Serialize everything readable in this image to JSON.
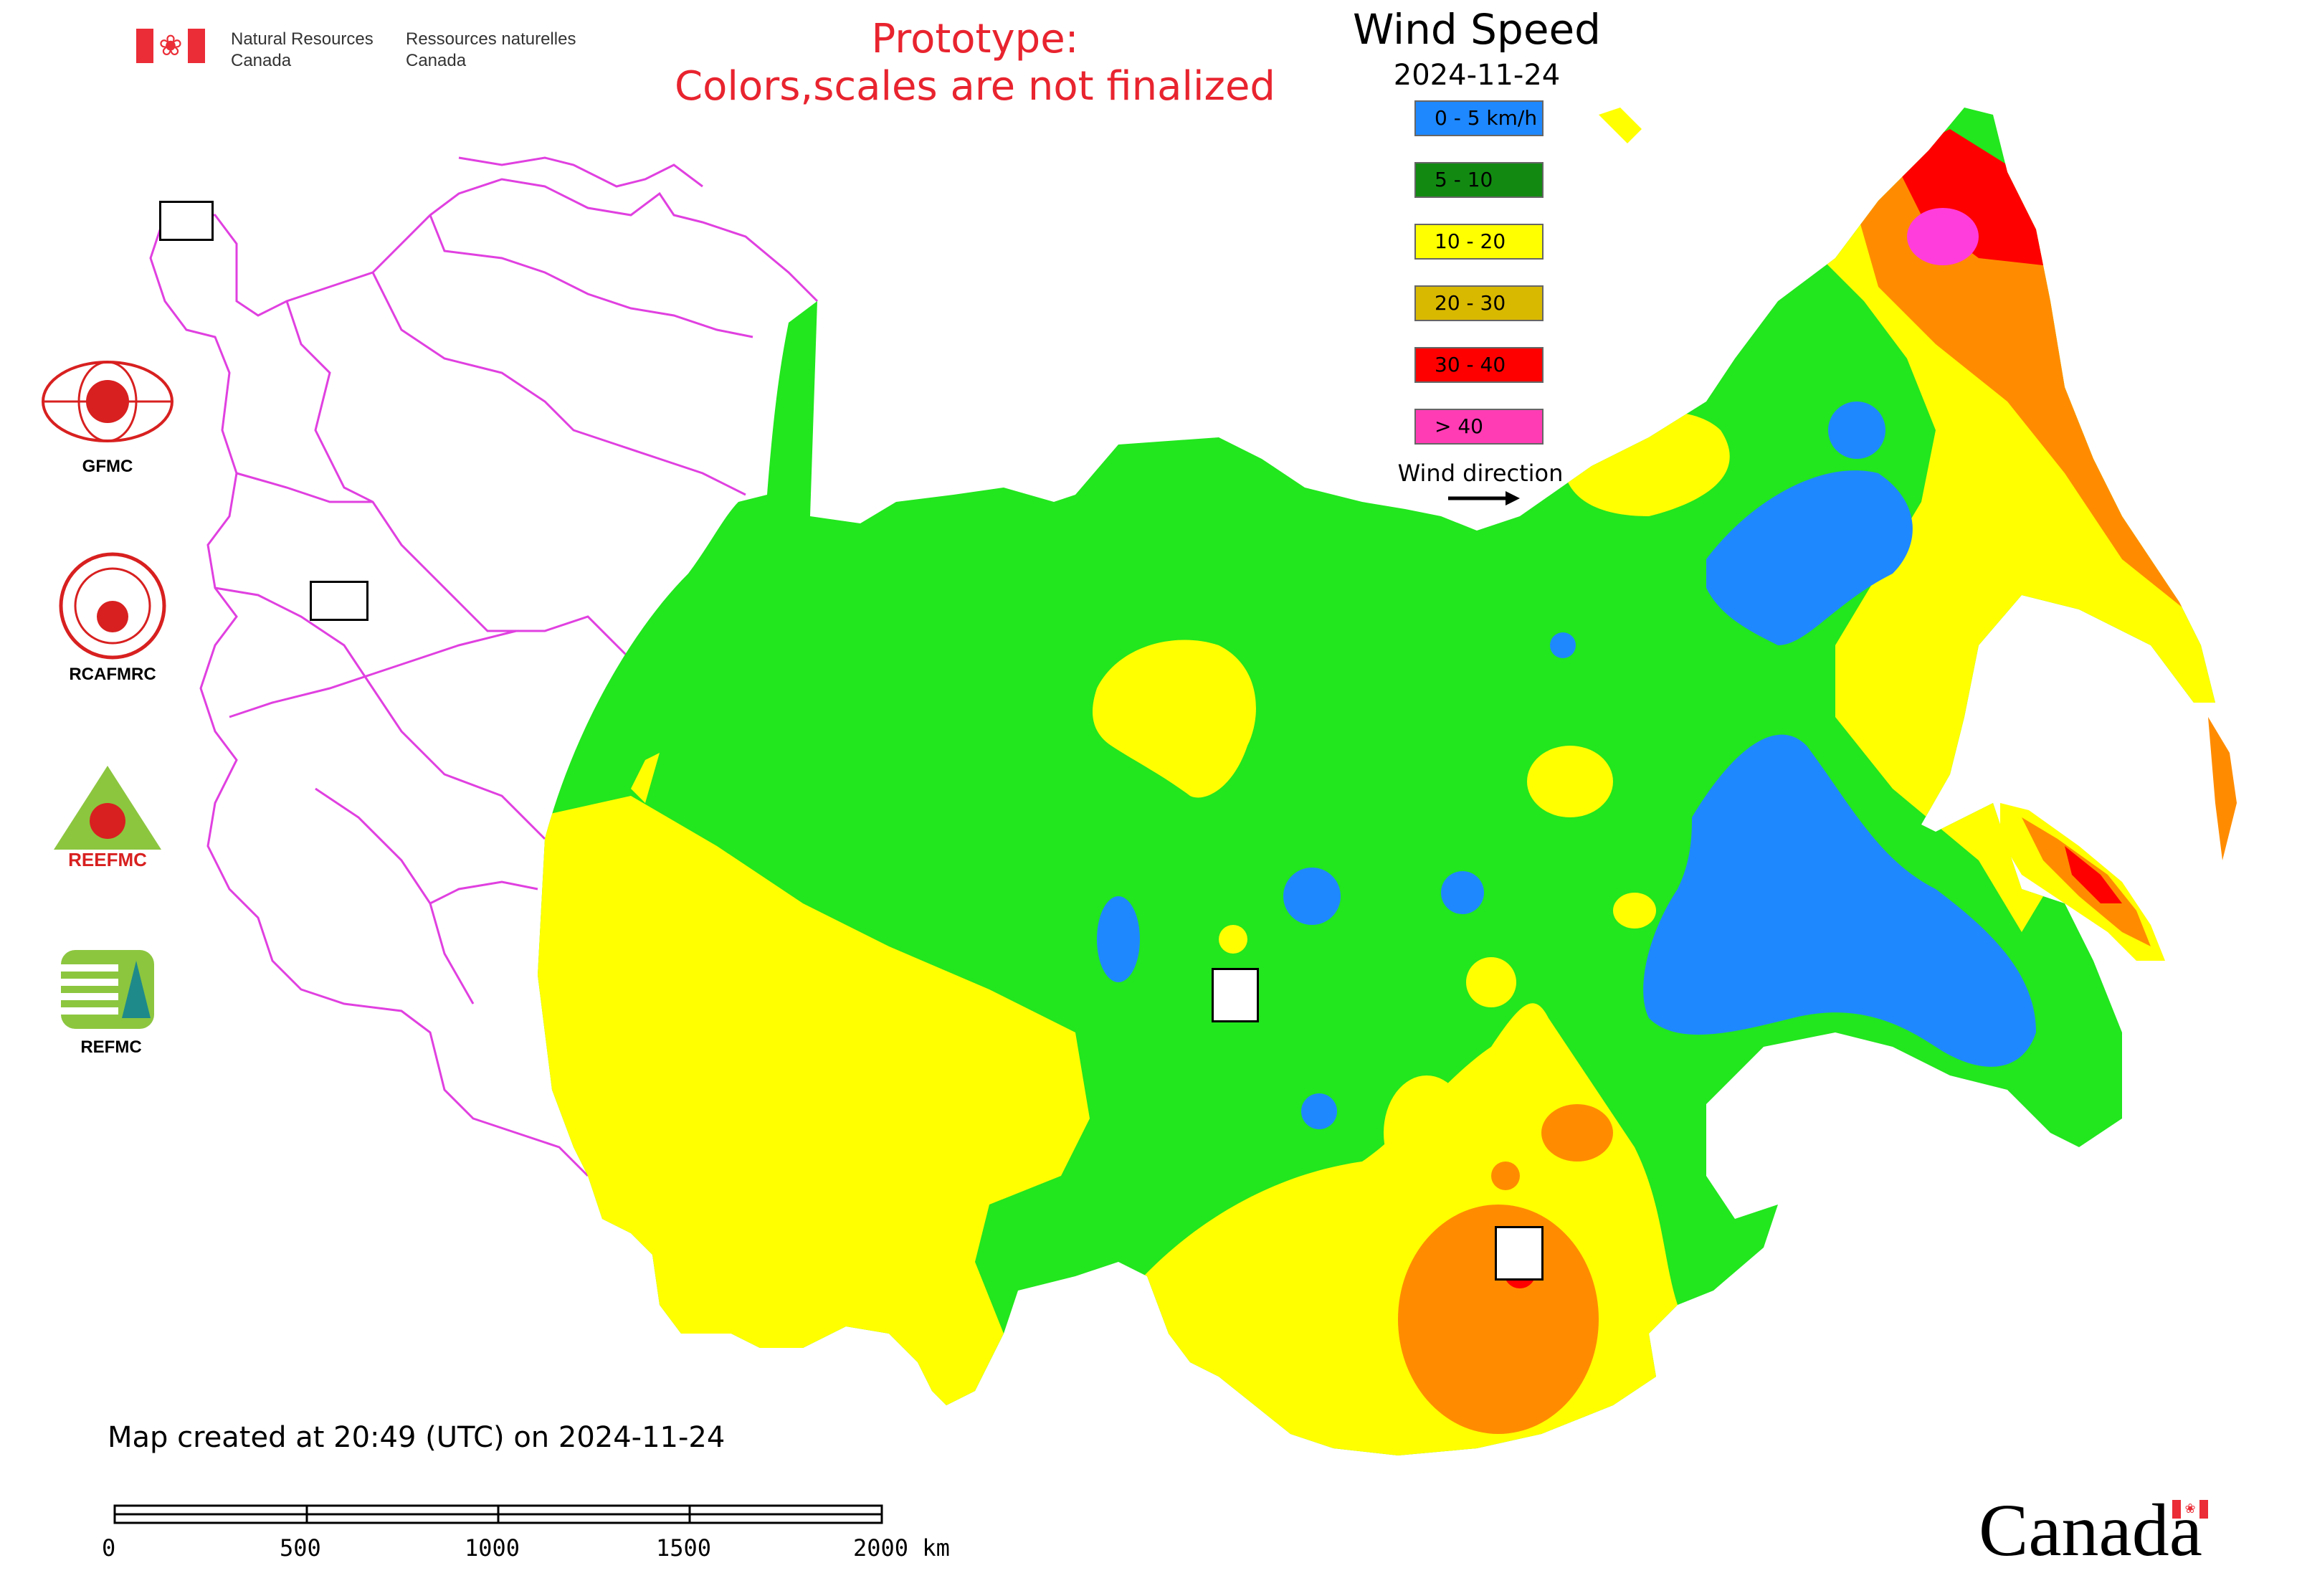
{
  "header": {
    "agency_en": "Natural Resources Canada",
    "agency_fr": "Ressources naturelles Canada",
    "prototype_line1": "Prototype:",
    "prototype_line2": "Colors,scales are not finalized"
  },
  "legend": {
    "title": "Wind Speed",
    "date": "2024-11-24",
    "items": [
      {
        "label": "0 - 5 km/h",
        "color": "#1e88ff"
      },
      {
        "label": "5 - 10",
        "color": "#128a12"
      },
      {
        "label": "10 - 20",
        "color": "#ffff00"
      },
      {
        "label": "20 - 30",
        "color": "#d9b800"
      },
      {
        "label": "30 - 40",
        "color": "#ff0000"
      },
      {
        "label": "> 40",
        "color": "#ff3cb4"
      }
    ],
    "wind_direction_label": "Wind direction"
  },
  "map_colors": {
    "green": "#22e61e",
    "yellow": "#ffff00",
    "blue": "#1e88ff",
    "orange": "#ff8c00",
    "red": "#ff0000",
    "magenta": "#ff3cdc",
    "boundary": "#e040e0"
  },
  "organizations": [
    {
      "name": "GFMC",
      "icon": "gfmc-logo"
    },
    {
      "name": "RCAFMRC",
      "icon": "rcafmrc-logo"
    },
    {
      "name": "REEFMC",
      "icon": "reefmc-logo"
    },
    {
      "name": "REFMC",
      "icon": "refmc-logo"
    }
  ],
  "footer": {
    "created": "Map created at 20:49 (UTC) on 2024-11-24",
    "scale_ticks": [
      "0",
      "500",
      "1000",
      "1500",
      "2000 km"
    ],
    "wordmark": "Canada"
  }
}
